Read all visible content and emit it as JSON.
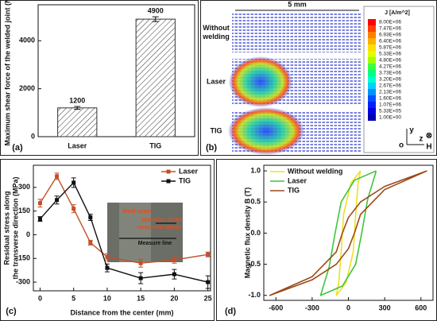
{
  "chart_data": [
    {
      "type": "bar",
      "panel_label": "(a)",
      "ylabel": "Maximum shear force of the welded joint (N)",
      "categories": [
        "Laser",
        "TIG"
      ],
      "values": [
        1200,
        4900
      ],
      "errors": [
        60,
        100
      ],
      "color": "#333333",
      "ylim": [
        0,
        5500
      ],
      "yticks": [
        0,
        2000,
        4000
      ]
    },
    {
      "type": "vector-field",
      "panel_label": "(b)",
      "scale_label": "5 mm",
      "row_labels": [
        [
          "Without",
          "welding"
        ],
        [
          "Laser"
        ],
        [
          "TIG"
        ]
      ],
      "colorbar": {
        "title": "J [A/m^2]",
        "ticks": [
          {
            "value": 8000000,
            "label": "8.00E+06"
          },
          {
            "value": 7470000,
            "label": "7.47E+06"
          },
          {
            "value": 6930000,
            "label": "6.93E+06"
          },
          {
            "value": 6400000,
            "label": "6.40E+06"
          },
          {
            "value": 5870000,
            "label": "5.87E+06"
          },
          {
            "value": 5330000,
            "label": "5.33E+06"
          },
          {
            "value": 4800000,
            "label": "4.80E+06"
          },
          {
            "value": 4270000,
            "label": "4.27E+06"
          },
          {
            "value": 3730000,
            "label": "3.73E+06"
          },
          {
            "value": 3200000,
            "label": "3.20E+06"
          },
          {
            "value": 2670000,
            "label": "2.67E+06"
          },
          {
            "value": 2130000,
            "label": "2.13E+06"
          },
          {
            "value": 1600000,
            "label": "1.60E+06"
          },
          {
            "value": 1070000,
            "label": "1.07E+06"
          },
          {
            "value": 533000,
            "label": "5.33E+05"
          },
          {
            "value": 1,
            "label": "1.00E+00"
          }
        ],
        "colors": [
          "#ff0000",
          "#ff4000",
          "#ff8000",
          "#ffb000",
          "#ffe000",
          "#e0ff00",
          "#a0ff00",
          "#40ff40",
          "#00ff80",
          "#00ffd0",
          "#00d0ff",
          "#0090ff",
          "#0050ff",
          "#0020ff",
          "#0000e0",
          "#0000b0"
        ]
      },
      "axis_labels": {
        "origin": "o",
        "y": "y",
        "z": "z",
        "field_symbol": "⊗",
        "field": "H"
      }
    },
    {
      "type": "line",
      "panel_label": "(c)",
      "ylabel": [
        "Residual stress along",
        "the transverse direction (MPa)"
      ],
      "xlabel": "Distance from the center (mm)",
      "x": [
        0,
        2.5,
        5,
        7.5,
        10,
        15,
        20,
        25
      ],
      "series": [
        {
          "name": "Laser",
          "color": "#c0502a",
          "values": [
            200,
            370,
            165,
            -50,
            -140,
            -180,
            -160,
            -125
          ],
          "errors": [
            25,
            20,
            25,
            15,
            20,
            25,
            20,
            15
          ]
        },
        {
          "name": "TIG",
          "color": "#111111",
          "values": [
            100,
            220,
            330,
            110,
            -210,
            -275,
            -250,
            -300
          ],
          "errors": [
            15,
            25,
            30,
            20,
            25,
            35,
            30,
            40
          ]
        }
      ],
      "xlim": [
        -1,
        25.4
      ],
      "xticks": [
        0,
        5,
        10,
        15,
        20,
        25
      ],
      "ylim": [
        -355,
        440
      ],
      "yticks": [
        -300,
        -150,
        0,
        150,
        300
      ],
      "legend": "upper right",
      "inset_labels": [
        "Weld seam",
        "Direction of the",
        "measured stress",
        "Measure line"
      ]
    },
    {
      "type": "line",
      "panel_label": "(d)",
      "ylabel": "Magnetic flux density B (T)",
      "series": [
        {
          "name": "Without welding",
          "color": "#f0e020",
          "x": [
            100,
            20,
            -40,
            -60,
            -80,
            -100,
            -20,
            40,
            60,
            80,
            100
          ],
          "values": [
            1.0,
            0.8,
            0.3,
            -0.3,
            -0.8,
            -1.0,
            -0.8,
            -0.3,
            0.3,
            0.8,
            1.0
          ]
        },
        {
          "name": "Laser",
          "color": "#3ec43e",
          "x": [
            230,
            50,
            -60,
            -110,
            -160,
            -230,
            -50,
            60,
            110,
            160,
            230
          ],
          "values": [
            1.0,
            0.85,
            0.5,
            0.0,
            -0.55,
            -1.0,
            -0.85,
            -0.5,
            0.0,
            0.55,
            1.0
          ]
        },
        {
          "name": "TIG",
          "color": "#9b4a1a",
          "x": [
            650,
            300,
            100,
            0,
            -50,
            -100,
            -300,
            -650,
            -300,
            -100,
            0,
            50,
            100,
            300,
            650
          ],
          "values": [
            1.0,
            0.75,
            0.5,
            0.25,
            0,
            -0.3,
            -0.7,
            -1.0,
            -0.75,
            -0.5,
            -0.25,
            0,
            0.3,
            0.7,
            1.0
          ]
        }
      ],
      "xlim": [
        -700,
        700
      ],
      "xticks": [
        -600,
        -300,
        0,
        300,
        600
      ],
      "ylim": [
        -1.08,
        1.09
      ],
      "yticks": [
        {
          "value": -1.0,
          "label": "-1.0"
        },
        {
          "value": -0.5,
          "label": "-0.5"
        },
        {
          "value": 0.0,
          "label": "0.0"
        },
        {
          "value": 0.5,
          "label": "0.5"
        },
        {
          "value": 1.0,
          "label": "1.0"
        }
      ],
      "legend": "upper left"
    }
  ]
}
